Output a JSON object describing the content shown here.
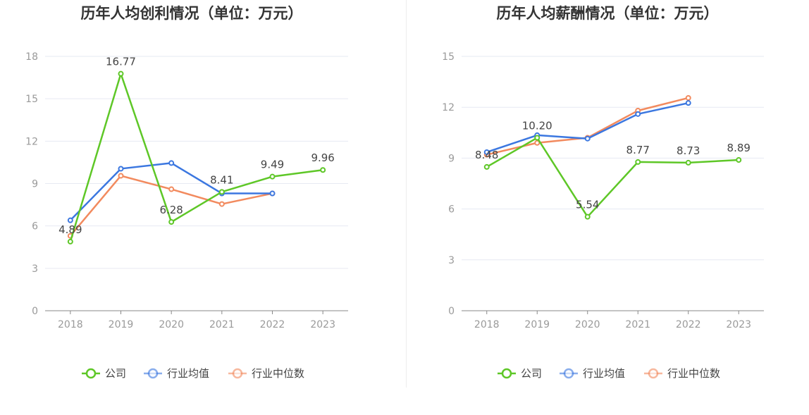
{
  "legend": [
    "公司",
    "行业均值",
    "行业中位数"
  ],
  "colors": {
    "company": "#5ec727",
    "avg": "#3b77e0",
    "median": "#f28a5e",
    "grid": "#e6e9f2",
    "axis": "#888888"
  },
  "chart_data": [
    {
      "type": "line",
      "title": "历年人均创利情况（单位：万元）",
      "categories": [
        "2018",
        "2019",
        "2020",
        "2021",
        "2022",
        "2023"
      ],
      "ylim": [
        0,
        18
      ],
      "yticks": [
        0,
        3,
        6,
        9,
        12,
        15,
        18
      ],
      "series": [
        {
          "name": "公司",
          "key": "company",
          "values": [
            4.89,
            16.77,
            6.28,
            8.41,
            9.49,
            9.96
          ],
          "labels": [
            "4.89",
            "16.77",
            "6.28",
            "8.41",
            "9.49",
            "9.96"
          ]
        },
        {
          "name": "行业均值",
          "key": "avg",
          "values": [
            6.4,
            10.05,
            10.45,
            8.3,
            8.3,
            null
          ]
        },
        {
          "name": "行业中位数",
          "key": "median",
          "values": [
            5.3,
            9.55,
            8.6,
            7.55,
            8.3,
            null
          ]
        }
      ]
    },
    {
      "type": "line",
      "title": "历年人均薪酬情况（单位：万元）",
      "categories": [
        "2018",
        "2019",
        "2020",
        "2021",
        "2022",
        "2023"
      ],
      "ylim": [
        0,
        15
      ],
      "yticks": [
        0,
        3,
        6,
        9,
        12,
        15
      ],
      "series": [
        {
          "name": "公司",
          "key": "company",
          "values": [
            8.48,
            10.2,
            5.54,
            8.77,
            8.73,
            8.89
          ],
          "labels": [
            "8.48",
            "10.20",
            "5.54",
            "8.77",
            "8.73",
            "8.89"
          ]
        },
        {
          "name": "行业均值",
          "key": "avg",
          "values": [
            9.35,
            10.35,
            10.15,
            11.6,
            12.25,
            null
          ]
        },
        {
          "name": "行业中位数",
          "key": "median",
          "values": [
            9.2,
            9.9,
            10.2,
            11.8,
            12.55,
            null
          ]
        }
      ]
    }
  ]
}
